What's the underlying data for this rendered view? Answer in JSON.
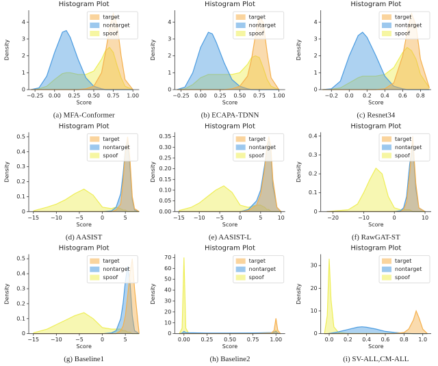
{
  "chart_data": [
    {
      "type": "area",
      "title": "Histogram Plot",
      "xlabel": "Score",
      "ylabel": "Density",
      "caption": "(a) MFA-Conformer",
      "legend": "upper right",
      "x": [
        -0.3,
        -0.2,
        -0.1,
        0,
        0.1,
        0.15,
        0.2,
        0.3,
        0.4,
        0.5,
        0.6,
        0.65,
        0.7,
        0.75,
        0.8,
        0.85,
        0.9,
        1.0
      ],
      "series": [
        {
          "name": "target",
          "color": "#f5b04c",
          "values": [
            0,
            0,
            0,
            0,
            0,
            0,
            0,
            0,
            0.05,
            0.2,
            1.0,
            2.2,
            3.6,
            4.5,
            3.8,
            2.0,
            0.6,
            0
          ]
        },
        {
          "name": "nontarget",
          "color": "#4a9be0",
          "values": [
            0,
            0.1,
            0.8,
            2.2,
            3.4,
            3.5,
            3.1,
            1.8,
            0.7,
            0.2,
            0.05,
            0,
            0,
            0,
            0,
            0,
            0,
            0
          ]
        },
        {
          "name": "spoof",
          "color": "#eeee55",
          "values": [
            0,
            0.05,
            0.2,
            0.6,
            0.95,
            1.0,
            1.0,
            0.9,
            0.9,
            1.1,
            1.8,
            2.3,
            2.5,
            2.2,
            1.4,
            0.7,
            0.2,
            0
          ]
        }
      ],
      "xlim": [
        -0.33,
        1.08
      ],
      "xticks": [
        {
          "value": -0.25,
          "label": "−0.25"
        },
        {
          "value": 0,
          "label": "0.00"
        },
        {
          "value": 0.25,
          "label": "0.25"
        },
        {
          "value": 0.5,
          "label": "0.50"
        },
        {
          "value": 0.75,
          "label": "0.75"
        },
        {
          "value": 1,
          "label": "1.00"
        }
      ],
      "ylim": [
        0,
        4.7
      ],
      "yticks": [
        0,
        1,
        2,
        3,
        4
      ]
    },
    {
      "type": "area",
      "title": "Histogram Plot",
      "xlabel": "Score",
      "ylabel": "Density",
      "caption": "(b) ECAPA-TDNN",
      "legend": "upper right",
      "x": [
        -0.3,
        -0.2,
        -0.1,
        0,
        0.1,
        0.15,
        0.2,
        0.3,
        0.4,
        0.5,
        0.6,
        0.65,
        0.7,
        0.75,
        0.8,
        0.85,
        0.9,
        1.0
      ],
      "series": [
        {
          "name": "target",
          "color": "#f5b04c",
          "values": [
            0,
            0,
            0,
            0,
            0,
            0,
            0,
            0,
            0.05,
            0.2,
            0.8,
            1.8,
            3.2,
            4.3,
            4.0,
            2.2,
            0.7,
            0
          ]
        },
        {
          "name": "nontarget",
          "color": "#4a9be0",
          "values": [
            0,
            0.15,
            1.0,
            2.5,
            3.4,
            3.3,
            2.8,
            1.6,
            0.6,
            0.2,
            0.05,
            0,
            0,
            0,
            0,
            0,
            0,
            0
          ]
        },
        {
          "name": "spoof",
          "color": "#eeee55",
          "values": [
            0,
            0.05,
            0.3,
            0.7,
            0.9,
            0.9,
            0.9,
            0.9,
            0.9,
            1.0,
            1.5,
            1.9,
            2.0,
            1.9,
            1.3,
            0.6,
            0.2,
            0
          ]
        }
      ],
      "xlim": [
        -0.33,
        1.08
      ],
      "xticks": [
        {
          "value": -0.25,
          "label": "−0.25"
        },
        {
          "value": 0,
          "label": "0.00"
        },
        {
          "value": 0.25,
          "label": "0.25"
        },
        {
          "value": 0.5,
          "label": "0.50"
        },
        {
          "value": 0.75,
          "label": "0.75"
        },
        {
          "value": 1,
          "label": "1.00"
        }
      ],
      "ylim": [
        0,
        4.7
      ],
      "yticks": [
        0,
        1,
        2,
        3,
        4
      ]
    },
    {
      "type": "area",
      "title": "Histogram Plot",
      "xlabel": "Score",
      "ylabel": "Density",
      "caption": "(c) Resnet34",
      "legend": "upper right",
      "x": [
        -0.3,
        -0.2,
        -0.1,
        0,
        0.1,
        0.15,
        0.2,
        0.3,
        0.4,
        0.5,
        0.6,
        0.65,
        0.7,
        0.75,
        0.8,
        0.9
      ],
      "series": [
        {
          "name": "target",
          "color": "#f5b04c",
          "values": [
            0,
            0,
            0,
            0,
            0,
            0,
            0,
            0,
            0.05,
            0.4,
            2.0,
            3.4,
            4.5,
            3.8,
            1.8,
            0.1
          ]
        },
        {
          "name": "nontarget",
          "color": "#4a9be0",
          "values": [
            0,
            0.05,
            0.5,
            2.0,
            3.2,
            3.4,
            3.1,
            2.0,
            0.8,
            0.2,
            0.05,
            0,
            0,
            0,
            0,
            0
          ]
        },
        {
          "name": "spoof",
          "color": "#eeee55",
          "values": [
            0,
            0.02,
            0.1,
            0.4,
            0.7,
            0.8,
            0.8,
            0.8,
            0.9,
            1.3,
            2.2,
            2.5,
            2.3,
            1.8,
            0.9,
            0.1
          ]
        }
      ],
      "xlim": [
        -0.32,
        0.92
      ],
      "xticks": [
        {
          "value": -0.2,
          "label": "−0.2"
        },
        {
          "value": 0,
          "label": "0.0"
        },
        0.2,
        0.4,
        0.6,
        0.8
      ],
      "ylim": [
        0,
        4.7
      ],
      "yticks": [
        0,
        1,
        2,
        3,
        4
      ]
    },
    {
      "type": "area",
      "title": "Histogram Plot",
      "xlabel": "Score",
      "ylabel": "Density",
      "caption": "(d) AASIST",
      "legend": "upper right",
      "x": [
        -15,
        -12,
        -10,
        -8,
        -6,
        -4,
        -2,
        0,
        2,
        3,
        4,
        4.5,
        5,
        5.5,
        6,
        6.5,
        7,
        8
      ],
      "series": [
        {
          "name": "target",
          "color": "#f5b04c",
          "values": [
            0,
            0,
            0,
            0,
            0,
            0,
            0,
            0,
            0,
            0.01,
            0.05,
            0.2,
            0.4,
            0.5,
            0.35,
            0.1,
            0.02,
            0
          ]
        },
        {
          "name": "nontarget",
          "color": "#4a9be0",
          "values": [
            0,
            0,
            0,
            0,
            0,
            0,
            0,
            0,
            0.005,
            0.03,
            0.12,
            0.25,
            0.42,
            0.48,
            0.3,
            0.08,
            0.01,
            0
          ]
        },
        {
          "name": "spoof",
          "color": "#eeee55",
          "values": [
            0.005,
            0.03,
            0.05,
            0.08,
            0.12,
            0.15,
            0.11,
            0.03,
            0.02,
            0.03,
            0.02,
            0.01,
            0.01,
            0,
            0,
            0,
            0,
            0
          ]
        }
      ],
      "xlim": [
        -16,
        8
      ],
      "xticks": [
        {
          "value": -15,
          "label": "−15"
        },
        {
          "value": -10,
          "label": "−10"
        },
        {
          "value": -5,
          "label": "−5"
        },
        0,
        5
      ],
      "ylim": [
        0,
        0.53
      ],
      "yticks": [
        0,
        0.1,
        0.2,
        0.3,
        0.4,
        0.5
      ]
    },
    {
      "type": "area",
      "title": "Histogram Plot",
      "xlabel": "Score",
      "ylabel": "Density",
      "caption": "(e) AASIST-L",
      "legend": "upper right",
      "x": [
        -15,
        -12,
        -10,
        -8,
        -6,
        -4,
        -2,
        0,
        2,
        4,
        5,
        6,
        6.5,
        7,
        7.5,
        8,
        9,
        10
      ],
      "series": [
        {
          "name": "target",
          "color": "#f5b04c",
          "values": [
            0,
            0,
            0,
            0,
            0,
            0,
            0,
            0,
            0.005,
            0.03,
            0.08,
            0.2,
            0.3,
            0.35,
            0.3,
            0.15,
            0.02,
            0
          ]
        },
        {
          "name": "nontarget",
          "color": "#4a9be0",
          "values": [
            0,
            0,
            0,
            0,
            0,
            0,
            0,
            0,
            0.01,
            0.05,
            0.1,
            0.22,
            0.3,
            0.33,
            0.28,
            0.12,
            0.02,
            0
          ]
        },
        {
          "name": "spoof",
          "color": "#eeee55",
          "values": [
            0.005,
            0.02,
            0.04,
            0.07,
            0.1,
            0.12,
            0.09,
            0.03,
            0.02,
            0.03,
            0.03,
            0.02,
            0.01,
            0.01,
            0,
            0,
            0,
            0
          ]
        }
      ],
      "xlim": [
        -16,
        11
      ],
      "xticks": [
        {
          "value": -15,
          "label": "−15"
        },
        {
          "value": -10,
          "label": "−10"
        },
        {
          "value": -5,
          "label": "−5"
        },
        0,
        5,
        10
      ],
      "ylim": [
        0,
        0.37
      ],
      "yticks": [
        {
          "value": 0,
          "label": "0.00"
        },
        {
          "value": 0.05,
          "label": "0.05"
        },
        {
          "value": 0.1,
          "label": "0.10"
        },
        {
          "value": 0.15,
          "label": "0.15"
        },
        {
          "value": 0.2,
          "label": "0.20"
        },
        {
          "value": 0.25,
          "label": "0.25"
        },
        {
          "value": 0.3,
          "label": "0.30"
        },
        {
          "value": 0.35,
          "label": "0.35"
        }
      ]
    },
    {
      "type": "area",
      "title": "Histogram Plot",
      "xlabel": "Score",
      "ylabel": "Density",
      "caption": "(f) RawGAT-ST",
      "legend": "upper right",
      "x": [
        -22,
        -15,
        -12,
        -10,
        -8,
        -6,
        -4,
        -2,
        0,
        2,
        3,
        4,
        5,
        6,
        7,
        8,
        10
      ],
      "series": [
        {
          "name": "target",
          "color": "#f5b04c",
          "values": [
            0,
            0,
            0,
            0,
            0,
            0,
            0,
            0,
            0,
            0,
            0.01,
            0.05,
            0.2,
            0.4,
            0.15,
            0.02,
            0
          ]
        },
        {
          "name": "nontarget",
          "color": "#4a9be0",
          "values": [
            0,
            0,
            0,
            0,
            0,
            0,
            0,
            0,
            0,
            0.005,
            0.02,
            0.08,
            0.25,
            0.36,
            0.12,
            0.02,
            0
          ]
        },
        {
          "name": "spoof",
          "color": "#eeee55",
          "values": [
            0,
            0.01,
            0.04,
            0.1,
            0.17,
            0.23,
            0.2,
            0.08,
            0.02,
            0.01,
            0.01,
            0.01,
            0.01,
            0,
            0,
            0,
            0
          ]
        }
      ],
      "xlim": [
        -24,
        12
      ],
      "xticks": [
        {
          "value": -20,
          "label": "−20"
        },
        {
          "value": -10,
          "label": "−10"
        },
        0,
        10
      ],
      "ylim": [
        0,
        0.42
      ],
      "yticks": [
        0,
        0.1,
        0.2,
        0.3,
        0.4
      ]
    },
    {
      "type": "area",
      "title": "Histogram Plot",
      "xlabel": "Score",
      "ylabel": "Density",
      "caption": "(g) Baseline1",
      "legend": "upper right",
      "x": [
        -15,
        -12,
        -10,
        -8,
        -6,
        -4,
        -2,
        0,
        2,
        3,
        4,
        4.5,
        5,
        5.5,
        6,
        6.5,
        7,
        8
      ],
      "series": [
        {
          "name": "target",
          "color": "#f5b04c",
          "values": [
            0,
            0,
            0,
            0,
            0,
            0,
            0,
            0,
            0,
            0,
            0.02,
            0.05,
            0.12,
            0.25,
            0.4,
            0.5,
            0.3,
            0
          ]
        },
        {
          "name": "nontarget",
          "color": "#4a9be0",
          "values": [
            0,
            0,
            0,
            0,
            0,
            0,
            0,
            0,
            0.005,
            0.02,
            0.1,
            0.2,
            0.35,
            0.45,
            0.35,
            0.12,
            0.02,
            0
          ]
        },
        {
          "name": "spoof",
          "color": "#eeee55",
          "values": [
            0.005,
            0.03,
            0.06,
            0.09,
            0.12,
            0.14,
            0.1,
            0.04,
            0.03,
            0.03,
            0.03,
            0.02,
            0.02,
            0.01,
            0.01,
            0,
            0,
            0
          ]
        }
      ],
      "xlim": [
        -16,
        8
      ],
      "xticks": [
        {
          "value": -15,
          "label": "−15"
        },
        {
          "value": -10,
          "label": "−10"
        },
        {
          "value": -5,
          "label": "−5"
        },
        0,
        5
      ],
      "ylim": [
        0,
        0.53
      ],
      "yticks": [
        0,
        0.1,
        0.2,
        0.3,
        0.4,
        0.5
      ]
    },
    {
      "type": "area",
      "title": "Histogram Plot",
      "xlabel": "Score",
      "ylabel": "Density",
      "caption": "(h) Baseline2",
      "legend": "upper right",
      "x": [
        -0.05,
        -0.02,
        0,
        0.02,
        0.05,
        0.25,
        0.5,
        0.75,
        0.95,
        0.98,
        1.0,
        1.02,
        1.05
      ],
      "series": [
        {
          "name": "target",
          "color": "#f5b04c",
          "values": [
            0,
            0,
            0,
            0,
            0,
            0,
            0,
            0,
            0.5,
            3,
            14,
            3,
            0
          ]
        },
        {
          "name": "nontarget",
          "color": "#4a9be0",
          "values": [
            0,
            0.5,
            2,
            1,
            0.8,
            0.5,
            0.5,
            0.6,
            1,
            1.5,
            2,
            0.5,
            0
          ]
        },
        {
          "name": "spoof",
          "color": "#eeee55",
          "values": [
            0,
            5,
            70,
            5,
            0.5,
            0.3,
            0.3,
            0.3,
            0.5,
            1,
            3,
            0.5,
            0
          ]
        }
      ],
      "xlim": [
        -0.1,
        1.1
      ],
      "xticks": [
        {
          "value": 0,
          "label": "0.00"
        },
        {
          "value": 0.25,
          "label": "0.25"
        },
        {
          "value": 0.5,
          "label": "0.50"
        },
        {
          "value": 0.75,
          "label": "0.75"
        },
        {
          "value": 1,
          "label": "1.00"
        }
      ],
      "ylim": [
        0,
        73
      ],
      "yticks": [
        0,
        10,
        20,
        30,
        40,
        50,
        60,
        70
      ]
    },
    {
      "type": "area",
      "title": "Histogram Plot",
      "xlabel": "Score",
      "ylabel": "Density",
      "caption": "(i) SV-ALL,CM-ALL",
      "legend": "upper right",
      "x": [
        -0.05,
        -0.02,
        0,
        0.02,
        0.05,
        0.1,
        0.2,
        0.3,
        0.35,
        0.4,
        0.5,
        0.6,
        0.7,
        0.8,
        0.85,
        0.9,
        0.93,
        0.96,
        1.0,
        1.05
      ],
      "series": [
        {
          "name": "target",
          "color": "#f5b04c",
          "values": [
            0,
            0,
            0,
            0,
            0,
            0,
            0,
            0,
            0,
            0,
            0,
            0,
            0.05,
            0.5,
            2,
            6,
            10,
            7,
            2,
            0
          ]
        },
        {
          "name": "nontarget",
          "color": "#4a9be0",
          "values": [
            0,
            0,
            0.1,
            0.2,
            0.4,
            0.8,
            1.8,
            2.8,
            3,
            2.8,
            2.0,
            1.0,
            0.5,
            0.2,
            0.1,
            0,
            0,
            0,
            0,
            0
          ]
        },
        {
          "name": "spoof",
          "color": "#eeee55",
          "values": [
            0,
            8,
            33,
            15,
            3,
            0.5,
            0.1,
            0.1,
            0.1,
            0.1,
            0.1,
            0.1,
            0.1,
            0.1,
            0,
            0,
            0,
            0,
            0,
            0
          ]
        }
      ],
      "xlim": [
        -0.09,
        1.09
      ],
      "xticks": [
        {
          "value": 0,
          "label": "0.0"
        },
        0.2,
        0.4,
        0.6,
        0.8,
        {
          "value": 1,
          "label": "1.0"
        }
      ],
      "ylim": [
        0,
        35
      ],
      "yticks": [
        0,
        10,
        20,
        30
      ]
    }
  ]
}
